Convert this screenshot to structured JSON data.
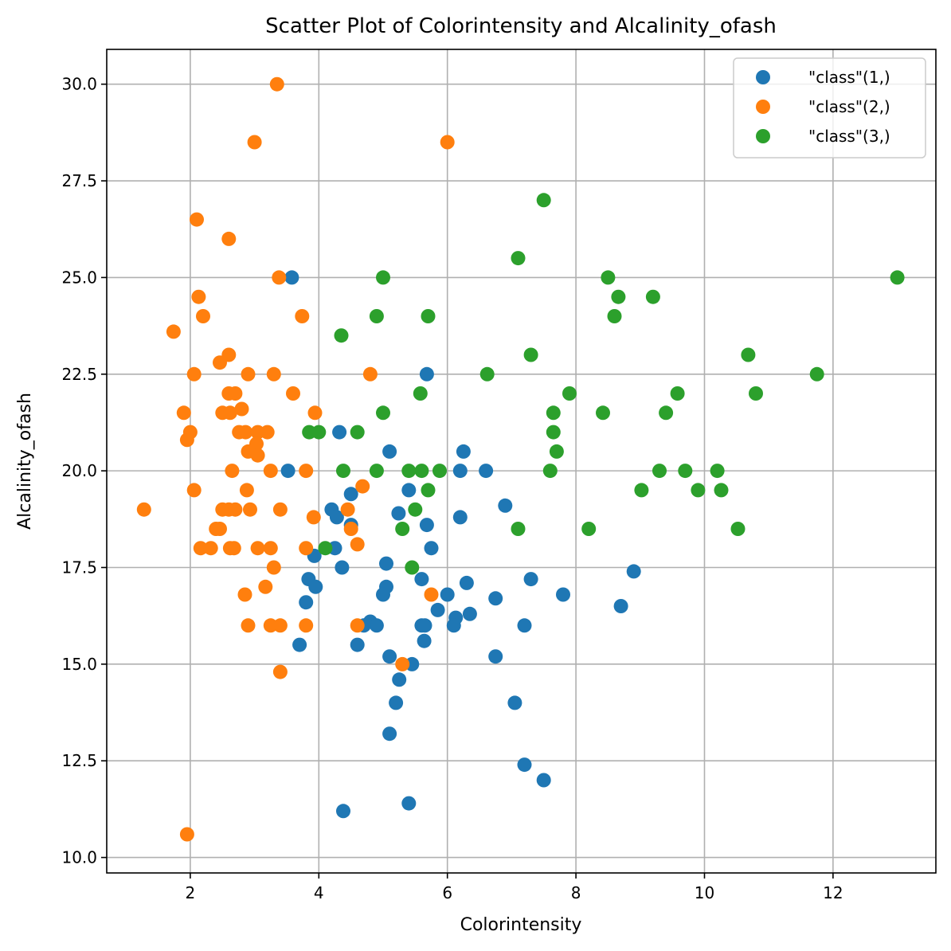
{
  "chart_data": {
    "type": "scatter",
    "title": "Scatter Plot of Colorintensity and Alcalinity_ofash",
    "xlabel": "Colorintensity",
    "ylabel": "Alcalinity_ofash",
    "xlim": [
      0.7,
      13.6
    ],
    "ylim": [
      9.6,
      30.9
    ],
    "xticks": [
      2,
      4,
      6,
      8,
      10,
      12
    ],
    "yticks": [
      10.0,
      12.5,
      15.0,
      17.5,
      20.0,
      22.5,
      25.0,
      27.5,
      30.0
    ],
    "xtick_labels": [
      "2",
      "4",
      "6",
      "8",
      "10",
      "12"
    ],
    "ytick_labels": [
      "10.0",
      "12.5",
      "15.0",
      "17.5",
      "20.0",
      "22.5",
      "25.0",
      "27.5",
      "30.0"
    ],
    "grid": true,
    "legend_position": "top-right",
    "series": [
      {
        "name": "\"class\"(1,)",
        "color": "#1f77b4",
        "points": [
          [
            3.58,
            25.0
          ],
          [
            5.68,
            22.5
          ],
          [
            4.32,
            21.0
          ],
          [
            5.1,
            20.5
          ],
          [
            6.25,
            20.5
          ],
          [
            3.52,
            20.0
          ],
          [
            6.2,
            20.0
          ],
          [
            6.6,
            20.0
          ],
          [
            5.4,
            19.5
          ],
          [
            4.5,
            19.4
          ],
          [
            6.9,
            19.1
          ],
          [
            4.2,
            19.0
          ],
          [
            5.24,
            18.9
          ],
          [
            4.28,
            18.8
          ],
          [
            6.2,
            18.8
          ],
          [
            4.5,
            18.6
          ],
          [
            5.68,
            18.6
          ],
          [
            4.25,
            18.0
          ],
          [
            5.75,
            18.0
          ],
          [
            3.93,
            17.8
          ],
          [
            5.05,
            17.6
          ],
          [
            4.36,
            17.5
          ],
          [
            8.9,
            17.4
          ],
          [
            3.84,
            17.2
          ],
          [
            5.6,
            17.2
          ],
          [
            7.3,
            17.2
          ],
          [
            6.3,
            17.1
          ],
          [
            3.95,
            17.0
          ],
          [
            5.05,
            17.0
          ],
          [
            5.0,
            16.8
          ],
          [
            6.0,
            16.8
          ],
          [
            7.8,
            16.8
          ],
          [
            6.75,
            16.7
          ],
          [
            3.8,
            16.6
          ],
          [
            8.7,
            16.5
          ],
          [
            5.85,
            16.4
          ],
          [
            6.35,
            16.3
          ],
          [
            6.13,
            16.2
          ],
          [
            4.8,
            16.1
          ],
          [
            6.1,
            16.0
          ],
          [
            4.9,
            16.0
          ],
          [
            4.7,
            16.0
          ],
          [
            5.6,
            16.0
          ],
          [
            5.65,
            16.0
          ],
          [
            7.2,
            16.0
          ],
          [
            5.64,
            15.6
          ],
          [
            3.7,
            15.5
          ],
          [
            4.6,
            15.5
          ],
          [
            5.1,
            15.2
          ],
          [
            6.75,
            15.2
          ],
          [
            5.45,
            15.0
          ],
          [
            5.25,
            14.6
          ],
          [
            5.2,
            14.0
          ],
          [
            7.05,
            14.0
          ],
          [
            5.1,
            13.2
          ],
          [
            7.2,
            12.4
          ],
          [
            7.5,
            12.0
          ],
          [
            5.4,
            11.4
          ],
          [
            4.38,
            11.2
          ]
        ]
      },
      {
        "name": "\"class\"(2,)",
        "color": "#ff7f0e",
        "points": [
          [
            3.35,
            30.0
          ],
          [
            3.0,
            28.5
          ],
          [
            6.0,
            28.5
          ],
          [
            2.1,
            26.5
          ],
          [
            2.6,
            26.0
          ],
          [
            3.38,
            25.0
          ],
          [
            2.13,
            24.5
          ],
          [
            2.2,
            24.0
          ],
          [
            3.74,
            24.0
          ],
          [
            1.74,
            23.6
          ],
          [
            2.6,
            23.0
          ],
          [
            2.46,
            22.8
          ],
          [
            2.06,
            22.5
          ],
          [
            2.9,
            22.5
          ],
          [
            3.3,
            22.5
          ],
          [
            4.8,
            22.5
          ],
          [
            2.6,
            22.0
          ],
          [
            2.7,
            22.0
          ],
          [
            3.6,
            22.0
          ],
          [
            2.8,
            21.6
          ],
          [
            1.9,
            21.5
          ],
          [
            2.5,
            21.5
          ],
          [
            2.62,
            21.5
          ],
          [
            3.94,
            21.5
          ],
          [
            2.0,
            21.0
          ],
          [
            2.76,
            21.0
          ],
          [
            2.86,
            21.0
          ],
          [
            3.05,
            21.0
          ],
          [
            3.2,
            21.0
          ],
          [
            1.95,
            20.8
          ],
          [
            3.03,
            20.7
          ],
          [
            2.9,
            20.5
          ],
          [
            3.05,
            20.4
          ],
          [
            2.65,
            20.0
          ],
          [
            3.25,
            20.0
          ],
          [
            3.8,
            20.0
          ],
          [
            4.68,
            19.6
          ],
          [
            2.06,
            19.5
          ],
          [
            2.88,
            19.5
          ],
          [
            1.28,
            19.0
          ],
          [
            2.5,
            19.0
          ],
          [
            2.6,
            19.0
          ],
          [
            2.7,
            19.0
          ],
          [
            2.93,
            19.0
          ],
          [
            3.4,
            19.0
          ],
          [
            4.45,
            19.0
          ],
          [
            3.92,
            18.8
          ],
          [
            2.4,
            18.5
          ],
          [
            2.46,
            18.5
          ],
          [
            4.5,
            18.5
          ],
          [
            4.6,
            18.1
          ],
          [
            2.16,
            18.0
          ],
          [
            2.32,
            18.0
          ],
          [
            2.62,
            18.0
          ],
          [
            2.68,
            18.0
          ],
          [
            3.05,
            18.0
          ],
          [
            3.25,
            18.0
          ],
          [
            3.8,
            18.0
          ],
          [
            3.3,
            17.5
          ],
          [
            3.17,
            17.0
          ],
          [
            2.85,
            16.8
          ],
          [
            5.75,
            16.8
          ],
          [
            2.9,
            16.0
          ],
          [
            3.25,
            16.0
          ],
          [
            3.4,
            16.0
          ],
          [
            3.8,
            16.0
          ],
          [
            4.6,
            16.0
          ],
          [
            5.3,
            15.0
          ],
          [
            3.4,
            14.8
          ],
          [
            1.95,
            10.6
          ]
        ]
      },
      {
        "name": "\"class\"(3,)",
        "color": "#2ca02c",
        "points": [
          [
            7.5,
            27.0
          ],
          [
            7.1,
            25.5
          ],
          [
            5.0,
            25.0
          ],
          [
            8.5,
            25.0
          ],
          [
            13.0,
            25.0
          ],
          [
            8.66,
            24.5
          ],
          [
            9.2,
            24.5
          ],
          [
            4.9,
            24.0
          ],
          [
            5.7,
            24.0
          ],
          [
            8.6,
            24.0
          ],
          [
            4.35,
            23.5
          ],
          [
            7.3,
            23.0
          ],
          [
            10.68,
            23.0
          ],
          [
            6.62,
            22.5
          ],
          [
            11.75,
            22.5
          ],
          [
            5.58,
            22.0
          ],
          [
            7.9,
            22.0
          ],
          [
            9.58,
            22.0
          ],
          [
            10.8,
            22.0
          ],
          [
            5.0,
            21.5
          ],
          [
            7.65,
            21.5
          ],
          [
            8.42,
            21.5
          ],
          [
            9.4,
            21.5
          ],
          [
            3.85,
            21.0
          ],
          [
            4.0,
            21.0
          ],
          [
            4.6,
            21.0
          ],
          [
            7.65,
            21.0
          ],
          [
            7.7,
            20.5
          ],
          [
            4.38,
            20.0
          ],
          [
            4.9,
            20.0
          ],
          [
            5.4,
            20.0
          ],
          [
            5.6,
            20.0
          ],
          [
            5.88,
            20.0
          ],
          [
            7.6,
            20.0
          ],
          [
            9.3,
            20.0
          ],
          [
            9.7,
            20.0
          ],
          [
            10.2,
            20.0
          ],
          [
            5.7,
            19.5
          ],
          [
            9.02,
            19.5
          ],
          [
            9.9,
            19.5
          ],
          [
            10.26,
            19.5
          ],
          [
            5.5,
            19.0
          ],
          [
            5.3,
            18.5
          ],
          [
            7.1,
            18.5
          ],
          [
            8.2,
            18.5
          ],
          [
            10.52,
            18.5
          ],
          [
            4.1,
            18.0
          ],
          [
            5.45,
            17.5
          ]
        ]
      }
    ]
  }
}
